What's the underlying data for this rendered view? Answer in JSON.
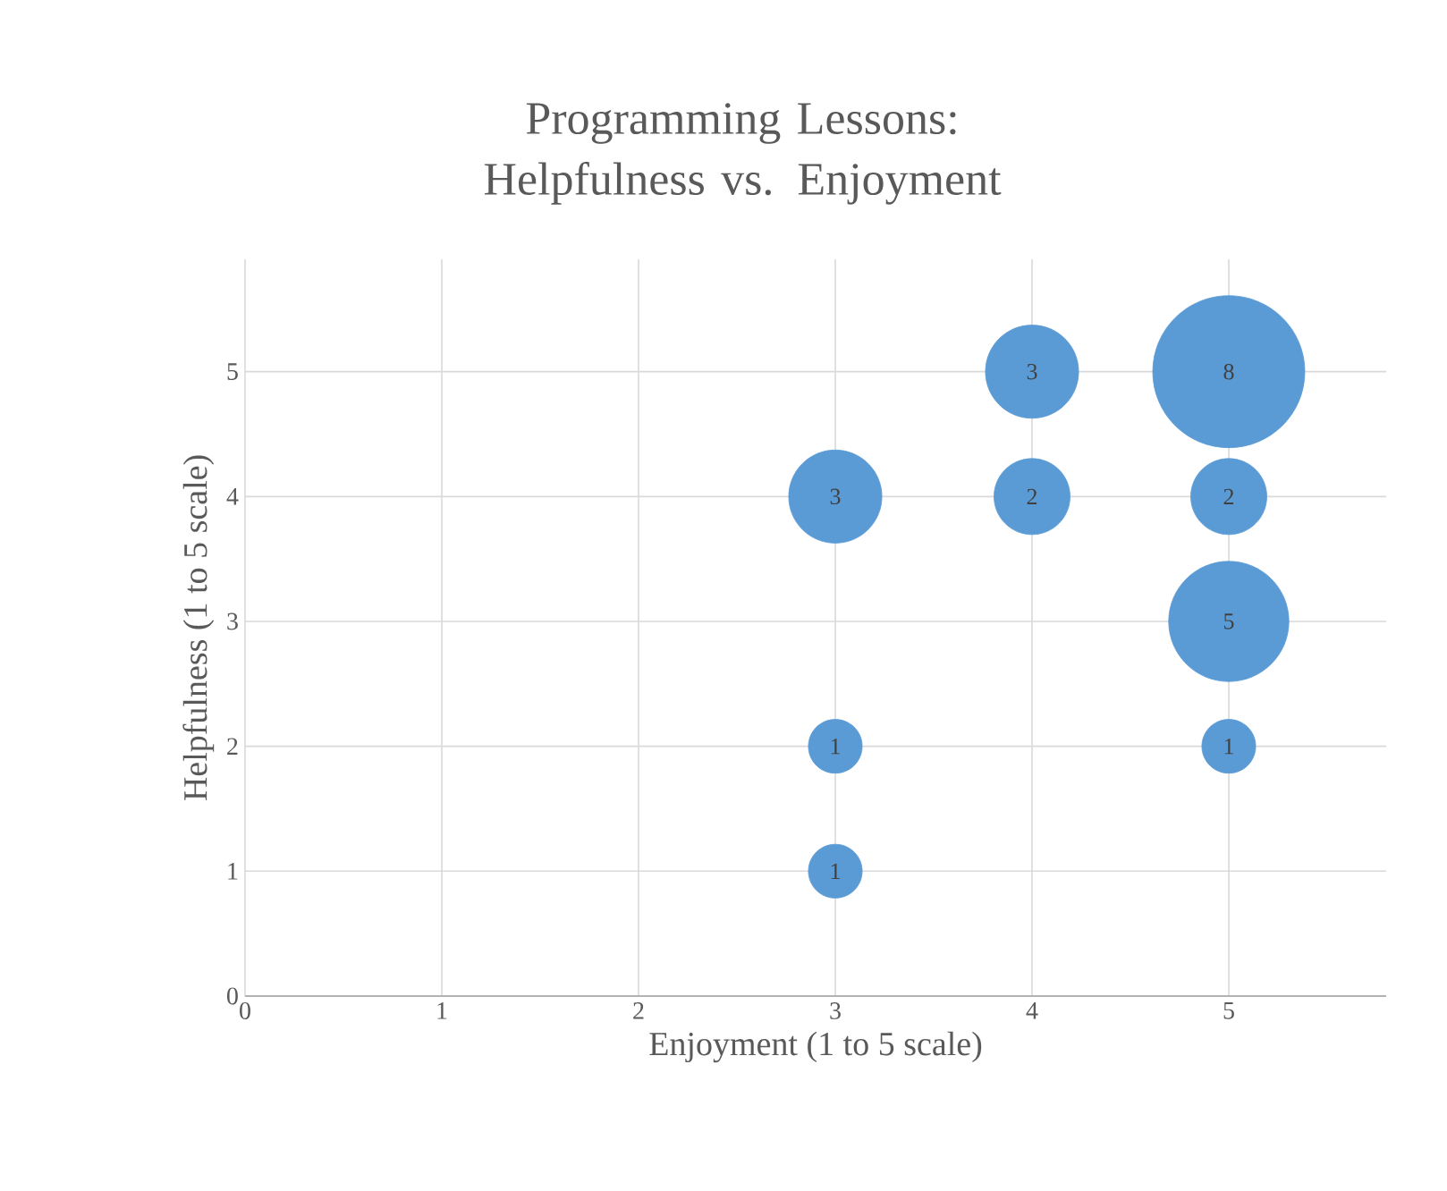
{
  "chart_data": {
    "type": "bubble",
    "title": "Programming Lessons: Helpfulness vs. Enjoyment",
    "xlabel": "Enjoyment (1 to 5 scale)",
    "ylabel": "Helpfulness (1 to 5 scale)",
    "x": [
      3,
      3,
      3,
      4,
      4,
      5,
      5,
      5,
      5
    ],
    "values": [
      1,
      2,
      4,
      4,
      5,
      5,
      4,
      3,
      2
    ],
    "sizes": [
      0.125,
      0.125,
      0.375,
      0.25,
      0.375,
      1,
      0.25,
      0.625,
      0.125
    ],
    "annotations": [
      {
        "text": "1",
        "x": 3,
        "y": 1
      },
      {
        "text": "1",
        "x": 3,
        "y": 2
      },
      {
        "text": "3",
        "x": 3,
        "y": 4
      },
      {
        "text": "2",
        "x": 4,
        "y": 4
      },
      {
        "text": "3",
        "x": 4,
        "y": 5
      },
      {
        "text": "8",
        "x": 5,
        "y": 5
      },
      {
        "text": "2",
        "x": 5,
        "y": 4
      },
      {
        "text": "5",
        "x": 5,
        "y": 3
      },
      {
        "text": "1",
        "x": 5,
        "y": 2
      }
    ],
    "color": "#5b9bd5",
    "marker": "circle",
    "xlim": [
      0,
      5.8
    ],
    "ylim": [
      0,
      5.9
    ],
    "xticks": [
      0,
      1,
      2,
      3,
      4,
      5
    ],
    "yticks": [
      0,
      1,
      2,
      3,
      4,
      5
    ],
    "grid": true
  }
}
